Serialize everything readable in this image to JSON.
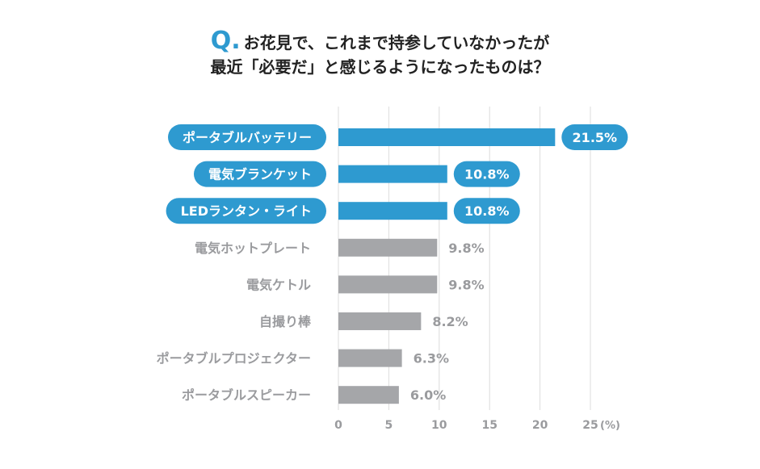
{
  "question": {
    "mark": "Q.",
    "line1": "お花見で、これまで持参していなかったが",
    "line2": "最近「必要だ」と感じるようになったものは？"
  },
  "colors": {
    "highlight": "#2e9ad0",
    "normal": "#a5a6a9",
    "grid": "#dcdcdc",
    "label_gray": "#9a9b9e"
  },
  "chart_data": {
    "type": "bar",
    "orientation": "horizontal",
    "categories": [
      "ポータブルバッテリー",
      "電気ブランケット",
      "LEDランタン・ライト",
      "電気ホットプレート",
      "電気ケトル",
      "自撮り棒",
      "ポータブルプロジェクター",
      "ポータブルスピーカー"
    ],
    "values": [
      21.5,
      10.8,
      10.8,
      9.8,
      9.8,
      8.2,
      6.3,
      6.0
    ],
    "value_labels": [
      "21.5%",
      "10.8%",
      "10.8%",
      "9.8%",
      "9.8%",
      "8.2%",
      "6.3%",
      "6.0%"
    ],
    "highlighted": [
      true,
      true,
      true,
      false,
      false,
      false,
      false,
      false
    ],
    "xlim": [
      0,
      25
    ],
    "xticks": [
      0,
      5,
      10,
      15,
      20,
      25
    ],
    "xtick_labels": [
      "0",
      "5",
      "10",
      "15",
      "20",
      "25"
    ],
    "unit_label": "(%)",
    "grid": true
  }
}
